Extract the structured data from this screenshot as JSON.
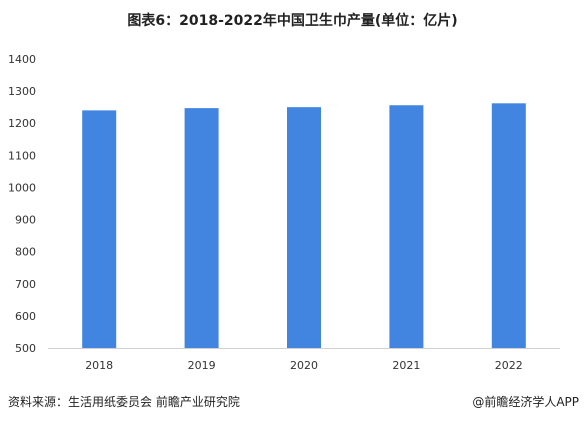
{
  "chart_data": {
    "type": "bar",
    "title": "图表6：2018-2022年中国卫生巾产量(单位：亿片)",
    "categories": [
      "2018",
      "2019",
      "2020",
      "2021",
      "2022"
    ],
    "values": [
      1240,
      1247,
      1250,
      1256,
      1262
    ],
    "ylim": [
      500,
      1400
    ],
    "yticks": [
      500,
      600,
      700,
      800,
      900,
      1000,
      1100,
      1200,
      1300,
      1400
    ],
    "xlabel": "",
    "ylabel": "",
    "grid": false,
    "bar_color": "#4285e0"
  },
  "footer": {
    "source": "资料来源：生活用纸委员会 前瞻产业研究院",
    "credit": "@前瞻经济学人APP"
  },
  "watermark": "前瞻产业研究院"
}
